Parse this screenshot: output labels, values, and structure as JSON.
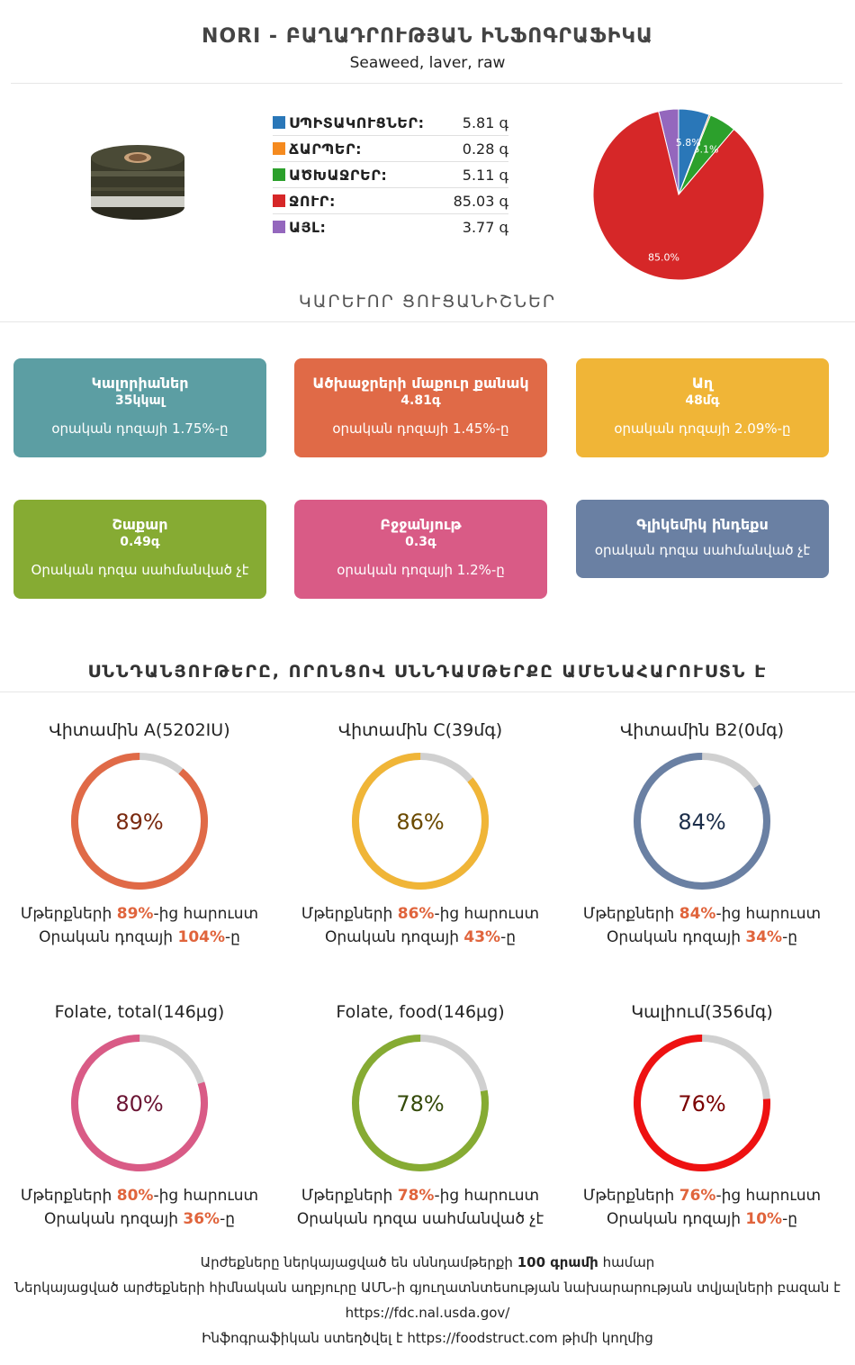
{
  "header": {
    "title": "NORI - ԲԱՂԱԴՐՈՒԹՅԱՆ ԻՆՖՈԳՐԱՖԻԿԱ",
    "subtitle": "Seaweed, laver, raw"
  },
  "macros": [
    {
      "label": "ՍՊԻՏԱԿՈՒՑՆԵՐ:",
      "value": "5.81 գ",
      "color": "#2a77b8"
    },
    {
      "label": "ՃԱՐՊԵՐ:",
      "value": "0.28 գ",
      "color": "#f58a1f"
    },
    {
      "label": "ԱԾԽԱՋՐԵՐ:",
      "value": "5.11 գ",
      "color": "#2ca02c"
    },
    {
      "label": "ՋՈՒՐ:",
      "value": "85.03 գ",
      "color": "#d62728"
    },
    {
      "label": "ԱՅԼ:",
      "value": "3.77 գ",
      "color": "#9467bd"
    }
  ],
  "chart_data": {
    "type": "pie",
    "slices": [
      {
        "label": "ՍՊԻՏԱԿՈՒՑՆԵՐ",
        "value": 5.81,
        "color": "#2a77b8",
        "text": "5.8%"
      },
      {
        "label": "ՃԱՐՊԵՐ",
        "value": 0.28,
        "color": "#f58a1f",
        "text": ""
      },
      {
        "label": "ԱԾԽԱՋՐԵՐ",
        "value": 5.11,
        "color": "#2ca02c",
        "text": "5.1%"
      },
      {
        "label": "ՋՈՒՐ",
        "value": 85.03,
        "color": "#d62728",
        "text": "85.0%"
      },
      {
        "label": "ԱՅԼ",
        "value": 3.77,
        "color": "#9467bd",
        "text": ""
      }
    ]
  },
  "sections": {
    "key_facts": "ԿԱՐԵՒՈՐ ՑՈՒՑԱՆԻՇՆԵՐ",
    "rich_in": "ՍՆՆԴԱՆՅՈՒԹԵՐԸ, ՈՐՈՆՑՈՎ ՍՆՆԴԱՄԹԵՐՔԸ ԱՄԵՆԱՀԱՐՈՒՍՏՆ Է"
  },
  "cards": [
    {
      "title": "Կալորիաներ",
      "value": "35կկալ",
      "note": "օրական դոզայի 1.75%-ը",
      "color": "#5c9ea3"
    },
    {
      "title": "Ածխաջրերի մաքուր քանակ",
      "value": "4.81գ",
      "note": "օրական դոզայի 1.45%-ը",
      "color": "#e06a47"
    },
    {
      "title": "Աղ",
      "value": "48մգ",
      "note": "օրական դոզայի 2.09%-ը",
      "color": "#f0b537"
    },
    {
      "title": "Շաքար",
      "value": "0.49գ",
      "note": "Օրական դոզա սահմանված չէ",
      "color": "#86ab33"
    },
    {
      "title": "Բջջանյութ",
      "value": "0.3գ",
      "note": "օրական դոզայի 1.2%-ը",
      "color": "#d95b86"
    },
    {
      "title": "Գլիկեմիկ ինդեքս",
      "value": "",
      "note": "օրական դոզա սահմանված չէ",
      "color": "#6a80a3"
    }
  ],
  "nutrients": [
    {
      "name": "Վիտամին A(5202IU)",
      "percent": 89,
      "pct_text": "89%",
      "color": "#e06a47",
      "text_color": "#7a2a10",
      "l1_pre": "Մթերքների ",
      "l1_hl": "89%",
      "l1_post": "-ից հարուստ",
      "l2_pre": "Օրական դոզայի ",
      "l2_hl": "104%",
      "l2_post": "-ը"
    },
    {
      "name": "Վիտամին C(39մգ)",
      "percent": 86,
      "pct_text": "86%",
      "color": "#f0b537",
      "text_color": "#6b4a00",
      "l1_pre": "Մթերքների ",
      "l1_hl": "86%",
      "l1_post": "-ից հարուստ",
      "l2_pre": "Օրական դոզայի ",
      "l2_hl": "43%",
      "l2_post": "-ը"
    },
    {
      "name": "Վիտամին B2(0մգ)",
      "percent": 84,
      "pct_text": "84%",
      "color": "#6a80a3",
      "text_color": "#1c2e4a",
      "l1_pre": "Մթերքների ",
      "l1_hl": "84%",
      "l1_post": "-ից հարուստ",
      "l2_pre": "Օրական դոզայի ",
      "l2_hl": "34%",
      "l2_post": "-ը"
    },
    {
      "name": "Folate, total(146µg)",
      "percent": 80,
      "pct_text": "80%",
      "color": "#d95b86",
      "text_color": "#6b1534",
      "l1_pre": "Մթերքների ",
      "l1_hl": "80%",
      "l1_post": "-ից հարուստ",
      "l2_pre": "Օրական դոզայի ",
      "l2_hl": "36%",
      "l2_post": "-ը"
    },
    {
      "name": "Folate, food(146µg)",
      "percent": 78,
      "pct_text": "78%",
      "color": "#86ab33",
      "text_color": "#344a0a",
      "l1_pre": "Մթերքների ",
      "l1_hl": "78%",
      "l1_post": "-ից հարուստ",
      "l2_pre": "Օրական դոզա սահմանված չէ",
      "l2_hl": "",
      "l2_post": ""
    },
    {
      "name": "Կալիում(356մգ)",
      "percent": 76,
      "pct_text": "76%",
      "color": "#ee1111",
      "text_color": "#7a0000",
      "l1_pre": "Մթերքների ",
      "l1_hl": "76%",
      "l1_post": "-ից հարուստ",
      "l2_pre": "Օրական դոզայի ",
      "l2_hl": "10%",
      "l2_post": "-ը"
    }
  ],
  "footer": {
    "line1_pre": "Արժեքները ներկայացված են սննդամթերքի ",
    "line1_bold": "100 գրամի",
    "line1_post": " համար",
    "line2": "Ներկայացված արժեքների հիմնական աղբյուրը ԱՄՆ-ի գյուղատնտեսության նախարարության տվյալների բազան է",
    "line3": "https://fdc.nal.usda.gov/",
    "line4": "Ինֆոգրաֆիկան ստեղծվել է https://foodstruct.com թիմի կողմից"
  }
}
